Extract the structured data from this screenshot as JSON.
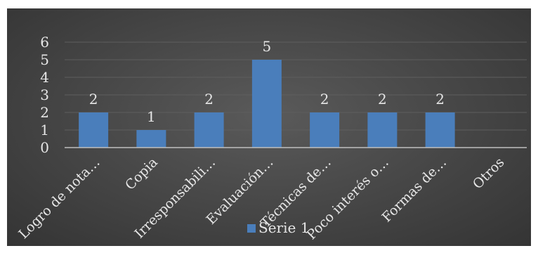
{
  "chart_data": {
    "type": "bar",
    "categories": [
      "Logro de nota…",
      "Copia",
      "Irresponsabili…",
      "Evaluación…",
      "Técnicas de…",
      "Poco interés o…",
      "Formas de…",
      "Otros"
    ],
    "series": [
      {
        "name": "Serie 1",
        "values": [
          2,
          1,
          2,
          5,
          2,
          2,
          2,
          0
        ],
        "color": "#4a7ebb"
      }
    ],
    "data_labels": [
      "2",
      "1",
      "2",
      "5",
      "2",
      "2",
      "2",
      ""
    ],
    "y_ticks": [
      0,
      1,
      2,
      3,
      4,
      5,
      6
    ],
    "ylim": [
      0,
      6
    ],
    "grid": true,
    "legend_position": "bottom",
    "title": "",
    "xlabel": "",
    "ylabel": "",
    "background_color": "#444444",
    "text_color": "#e6e6e6"
  }
}
